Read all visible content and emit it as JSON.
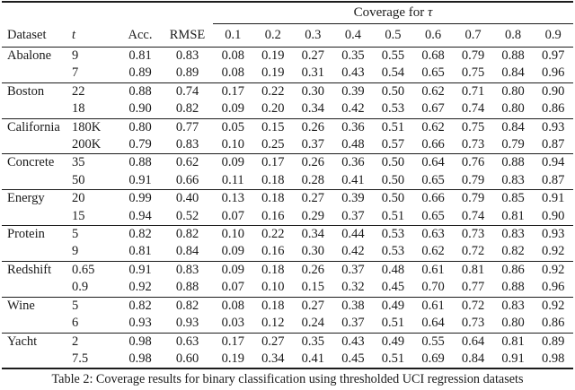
{
  "table": {
    "caption": "Table 2: Coverage results for binary classification using thresholded UCI regression datasets",
    "span_header_prefix": "Coverage for",
    "tau_symbol": "τ",
    "columns": [
      "Dataset",
      "t",
      "Acc.",
      "RMSE"
    ],
    "tau_columns": [
      "0.1",
      "0.2",
      "0.3",
      "0.4",
      "0.5",
      "0.6",
      "0.7",
      "0.8",
      "0.9"
    ],
    "groups": [
      {
        "dataset": "Abalone",
        "rows": [
          {
            "t": "9",
            "acc": "0.81",
            "rmse": "0.83",
            "coverage": [
              "0.08",
              "0.19",
              "0.27",
              "0.35",
              "0.55",
              "0.68",
              "0.79",
              "0.88",
              "0.97"
            ]
          },
          {
            "t": "7",
            "acc": "0.89",
            "rmse": "0.89",
            "coverage": [
              "0.08",
              "0.19",
              "0.31",
              "0.43",
              "0.54",
              "0.65",
              "0.75",
              "0.84",
              "0.96"
            ]
          }
        ]
      },
      {
        "dataset": "Boston",
        "rows": [
          {
            "t": "22",
            "acc": "0.88",
            "rmse": "0.74",
            "coverage": [
              "0.17",
              "0.22",
              "0.30",
              "0.39",
              "0.50",
              "0.62",
              "0.71",
              "0.80",
              "0.90"
            ]
          },
          {
            "t": "18",
            "acc": "0.90",
            "rmse": "0.82",
            "coverage": [
              "0.09",
              "0.20",
              "0.34",
              "0.42",
              "0.53",
              "0.67",
              "0.74",
              "0.80",
              "0.86"
            ]
          }
        ]
      },
      {
        "dataset": "California",
        "rows": [
          {
            "t": "180K",
            "acc": "0.80",
            "rmse": "0.77",
            "coverage": [
              "0.05",
              "0.15",
              "0.26",
              "0.36",
              "0.51",
              "0.62",
              "0.75",
              "0.84",
              "0.93"
            ]
          },
          {
            "t": "200K",
            "acc": "0.79",
            "rmse": "0.83",
            "coverage": [
              "0.10",
              "0.25",
              "0.37",
              "0.48",
              "0.57",
              "0.66",
              "0.73",
              "0.79",
              "0.87"
            ]
          }
        ]
      },
      {
        "dataset": "Concrete",
        "rows": [
          {
            "t": "35",
            "acc": "0.88",
            "rmse": "0.62",
            "coverage": [
              "0.09",
              "0.17",
              "0.26",
              "0.36",
              "0.50",
              "0.64",
              "0.76",
              "0.88",
              "0.94"
            ]
          },
          {
            "t": "50",
            "acc": "0.91",
            "rmse": "0.66",
            "coverage": [
              "0.11",
              "0.18",
              "0.28",
              "0.41",
              "0.50",
              "0.65",
              "0.79",
              "0.83",
              "0.87"
            ]
          }
        ]
      },
      {
        "dataset": "Energy",
        "rows": [
          {
            "t": "20",
            "acc": "0.99",
            "rmse": "0.40",
            "coverage": [
              "0.13",
              "0.18",
              "0.27",
              "0.39",
              "0.50",
              "0.66",
              "0.79",
              "0.85",
              "0.91"
            ]
          },
          {
            "t": "15",
            "acc": "0.94",
            "rmse": "0.52",
            "coverage": [
              "0.07",
              "0.16",
              "0.29",
              "0.37",
              "0.51",
              "0.65",
              "0.74",
              "0.81",
              "0.90"
            ]
          }
        ]
      },
      {
        "dataset": "Protein",
        "rows": [
          {
            "t": "5",
            "acc": "0.82",
            "rmse": "0.82",
            "coverage": [
              "0.10",
              "0.22",
              "0.34",
              "0.44",
              "0.53",
              "0.63",
              "0.73",
              "0.83",
              "0.93"
            ]
          },
          {
            "t": "9",
            "acc": "0.81",
            "rmse": "0.84",
            "coverage": [
              "0.09",
              "0.16",
              "0.30",
              "0.42",
              "0.53",
              "0.62",
              "0.72",
              "0.82",
              "0.92"
            ]
          }
        ]
      },
      {
        "dataset": "Redshift",
        "rows": [
          {
            "t": "0.65",
            "acc": "0.91",
            "rmse": "0.83",
            "coverage": [
              "0.09",
              "0.18",
              "0.26",
              "0.37",
              "0.48",
              "0.61",
              "0.81",
              "0.86",
              "0.92"
            ]
          },
          {
            "t": "0.9",
            "acc": "0.92",
            "rmse": "0.88",
            "coverage": [
              "0.07",
              "0.10",
              "0.15",
              "0.32",
              "0.45",
              "0.70",
              "0.77",
              "0.88",
              "0.96"
            ]
          }
        ]
      },
      {
        "dataset": "Wine",
        "rows": [
          {
            "t": "5",
            "acc": "0.82",
            "rmse": "0.82",
            "coverage": [
              "0.08",
              "0.18",
              "0.27",
              "0.38",
              "0.49",
              "0.61",
              "0.72",
              "0.83",
              "0.92"
            ]
          },
          {
            "t": "6",
            "acc": "0.93",
            "rmse": "0.93",
            "coverage": [
              "0.03",
              "0.12",
              "0.24",
              "0.37",
              "0.51",
              "0.64",
              "0.73",
              "0.80",
              "0.86"
            ]
          }
        ]
      },
      {
        "dataset": "Yacht",
        "rows": [
          {
            "t": "2",
            "acc": "0.98",
            "rmse": "0.63",
            "coverage": [
              "0.17",
              "0.27",
              "0.35",
              "0.43",
              "0.49",
              "0.55",
              "0.64",
              "0.81",
              "0.89"
            ]
          },
          {
            "t": "7.5",
            "acc": "0.98",
            "rmse": "0.60",
            "coverage": [
              "0.19",
              "0.34",
              "0.41",
              "0.45",
              "0.51",
              "0.69",
              "0.84",
              "0.91",
              "0.98"
            ]
          }
        ]
      }
    ]
  }
}
